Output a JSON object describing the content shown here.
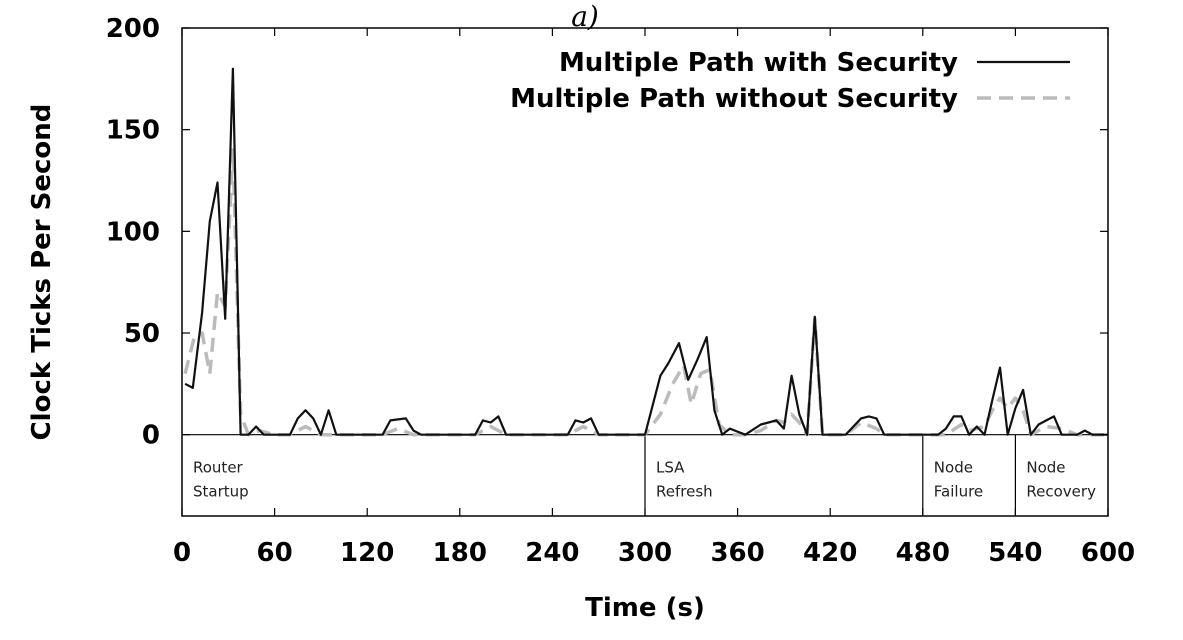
{
  "chart_data": {
    "type": "line",
    "title": "a)",
    "xlabel": "Time (s)",
    "ylabel": "Clock Ticks Per Second",
    "xlim": [
      0,
      600
    ],
    "ylim": [
      -40,
      200
    ],
    "xticks": [
      0,
      60,
      120,
      180,
      240,
      300,
      360,
      420,
      480,
      540,
      600
    ],
    "yticks": [
      0,
      50,
      100,
      150,
      200
    ],
    "grid": false,
    "legend_position": "top-right",
    "regions": [
      {
        "start": 0,
        "end": 300,
        "label_line1": "Router",
        "label_line2": "Startup"
      },
      {
        "start": 300,
        "end": 480,
        "label_line1": "LSA",
        "label_line2": "Refresh"
      },
      {
        "start": 480,
        "end": 540,
        "label_line1": "Node",
        "label_line2": "Failure"
      },
      {
        "start": 540,
        "end": 600,
        "label_line1": "Node",
        "label_line2": "Recovery"
      }
    ],
    "series": [
      {
        "name": "Multiple Path with Security",
        "color": "#111111",
        "dash": "solid",
        "points": [
          [
            2,
            25
          ],
          [
            7,
            23
          ],
          [
            13,
            60
          ],
          [
            18,
            105
          ],
          [
            23,
            124
          ],
          [
            28,
            57
          ],
          [
            33,
            180
          ],
          [
            38,
            0
          ],
          [
            43,
            0
          ],
          [
            48,
            4
          ],
          [
            53,
            0
          ],
          [
            58,
            0
          ],
          [
            65,
            0
          ],
          [
            70,
            0
          ],
          [
            75,
            8
          ],
          [
            80,
            12
          ],
          [
            85,
            8
          ],
          [
            90,
            0
          ],
          [
            95,
            12
          ],
          [
            100,
            0
          ],
          [
            110,
            0
          ],
          [
            120,
            0
          ],
          [
            130,
            0
          ],
          [
            135,
            7
          ],
          [
            145,
            8
          ],
          [
            150,
            2
          ],
          [
            155,
            0
          ],
          [
            165,
            0
          ],
          [
            175,
            0
          ],
          [
            185,
            0
          ],
          [
            190,
            0
          ],
          [
            195,
            7
          ],
          [
            200,
            6
          ],
          [
            205,
            9
          ],
          [
            210,
            0
          ],
          [
            220,
            0
          ],
          [
            230,
            0
          ],
          [
            240,
            0
          ],
          [
            250,
            0
          ],
          [
            255,
            7
          ],
          [
            260,
            6
          ],
          [
            265,
            8
          ],
          [
            270,
            0
          ],
          [
            280,
            0
          ],
          [
            290,
            0
          ],
          [
            300,
            0
          ],
          [
            310,
            29
          ],
          [
            315,
            35
          ],
          [
            322,
            45
          ],
          [
            328,
            27
          ],
          [
            334,
            37
          ],
          [
            340,
            48
          ],
          [
            345,
            12
          ],
          [
            350,
            0
          ],
          [
            355,
            3
          ],
          [
            365,
            0
          ],
          [
            375,
            5
          ],
          [
            380,
            6
          ],
          [
            385,
            7
          ],
          [
            390,
            3
          ],
          [
            395,
            29
          ],
          [
            400,
            10
          ],
          [
            405,
            0
          ],
          [
            410,
            58
          ],
          [
            415,
            0
          ],
          [
            420,
            0
          ],
          [
            430,
            0
          ],
          [
            440,
            8
          ],
          [
            445,
            9
          ],
          [
            450,
            8
          ],
          [
            455,
            0
          ],
          [
            465,
            0
          ],
          [
            470,
            0
          ],
          [
            480,
            0
          ],
          [
            490,
            0
          ],
          [
            495,
            3
          ],
          [
            500,
            9
          ],
          [
            505,
            9
          ],
          [
            510,
            0
          ],
          [
            515,
            4
          ],
          [
            520,
            0
          ],
          [
            525,
            17
          ],
          [
            530,
            33
          ],
          [
            535,
            0
          ],
          [
            540,
            13
          ],
          [
            545,
            22
          ],
          [
            550,
            0
          ],
          [
            555,
            5
          ],
          [
            560,
            7
          ],
          [
            565,
            9
          ],
          [
            570,
            0
          ],
          [
            580,
            0
          ],
          [
            585,
            2
          ],
          [
            590,
            0
          ],
          [
            600,
            0
          ]
        ]
      },
      {
        "name": "Multiple Path without Security",
        "color": "#bbbbbb",
        "dash": "dashed",
        "points": [
          [
            2,
            30
          ],
          [
            8,
            48
          ],
          [
            13,
            50
          ],
          [
            18,
            30
          ],
          [
            23,
            70
          ],
          [
            28,
            63
          ],
          [
            33,
            140
          ],
          [
            38,
            10
          ],
          [
            43,
            0
          ],
          [
            50,
            2
          ],
          [
            60,
            0
          ],
          [
            70,
            0
          ],
          [
            80,
            4
          ],
          [
            90,
            0
          ],
          [
            100,
            0
          ],
          [
            120,
            0
          ],
          [
            130,
            0
          ],
          [
            140,
            3
          ],
          [
            150,
            0
          ],
          [
            170,
            0
          ],
          [
            190,
            0
          ],
          [
            200,
            4
          ],
          [
            210,
            0
          ],
          [
            230,
            0
          ],
          [
            250,
            0
          ],
          [
            260,
            4
          ],
          [
            270,
            0
          ],
          [
            290,
            0
          ],
          [
            300,
            0
          ],
          [
            310,
            10
          ],
          [
            318,
            25
          ],
          [
            325,
            34
          ],
          [
            330,
            15
          ],
          [
            336,
            30
          ],
          [
            342,
            32
          ],
          [
            348,
            5
          ],
          [
            355,
            0
          ],
          [
            365,
            0
          ],
          [
            375,
            2
          ],
          [
            385,
            7
          ],
          [
            390,
            6
          ],
          [
            395,
            10
          ],
          [
            400,
            6
          ],
          [
            405,
            0
          ],
          [
            410,
            57
          ],
          [
            415,
            0
          ],
          [
            420,
            0
          ],
          [
            430,
            0
          ],
          [
            440,
            6
          ],
          [
            450,
            3
          ],
          [
            455,
            0
          ],
          [
            470,
            0
          ],
          [
            480,
            0
          ],
          [
            495,
            0
          ],
          [
            505,
            5
          ],
          [
            510,
            2
          ],
          [
            520,
            4
          ],
          [
            525,
            12
          ],
          [
            530,
            18
          ],
          [
            535,
            13
          ],
          [
            540,
            18
          ],
          [
            545,
            12
          ],
          [
            550,
            0
          ],
          [
            560,
            4
          ],
          [
            570,
            3
          ],
          [
            580,
            0
          ],
          [
            600,
            0
          ]
        ]
      }
    ]
  }
}
